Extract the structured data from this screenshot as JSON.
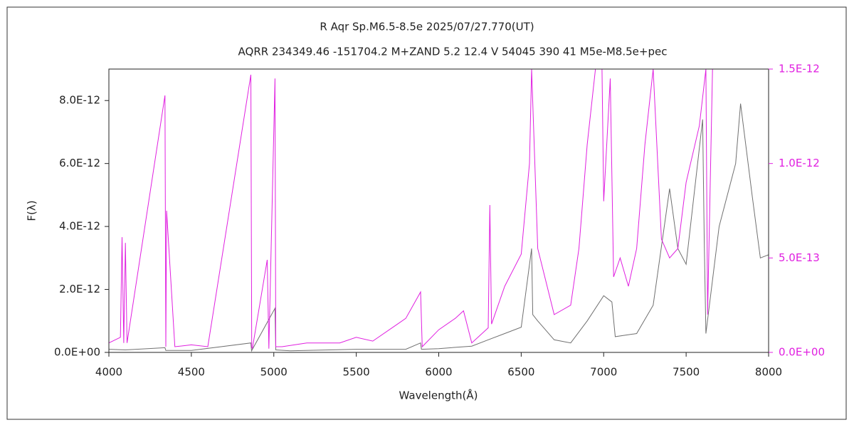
{
  "chart_data": {
    "type": "line",
    "title": "R Aqr    Sp.M6.5-8.5e    2025/07/27.770(UT)",
    "subtitle": "AQRR 234349.46 -151704.2 M+ZAND 5.2 12.4 V 54045 390 41 M5e-M8.5e+pec",
    "x_label": "Wavelength(Å)",
    "y_label": "F(λ)",
    "xlim": [
      4000,
      8000
    ],
    "xticks": [
      4000,
      4500,
      5000,
      5500,
      6000,
      6500,
      7000,
      7500,
      8000
    ],
    "ylim": [
      0,
      9e-12
    ],
    "yticks": [
      {
        "value": 0,
        "label": "0.0E+00"
      },
      {
        "value": 2e-12,
        "label": "2.0E-12"
      },
      {
        "value": 4e-12,
        "label": "4.0E-12"
      },
      {
        "value": 6e-12,
        "label": "6.0E-12"
      },
      {
        "value": 8e-12,
        "label": "8.0E-12"
      }
    ],
    "y2lim": [
      0,
      1.5e-12
    ],
    "y2ticks": [
      {
        "value": 0,
        "label": "0.0E+00"
      },
      {
        "value": 5e-13,
        "label": "5.0E-13"
      },
      {
        "value": 1e-12,
        "label": "1.0E-12"
      },
      {
        "value": 1.5e-12,
        "label": "1.5E-12"
      }
    ],
    "series": [
      {
        "color": "#707070",
        "x": [
          4000,
          4100,
          4340,
          4345,
          4500,
          4861,
          4865,
          5007,
          5012,
          5100,
          5500,
          5800,
          5890,
          5895,
          6000,
          6200,
          6300,
          6400,
          6500,
          6563,
          6570,
          6600,
          6700,
          6800,
          6900,
          7000,
          7050,
          7070,
          7200,
          7300,
          7400,
          7450,
          7500,
          7600,
          7610,
          7620,
          7700,
          7800,
          7830,
          7900,
          7950,
          8000
        ],
        "values": [
          1e-13,
          8e-14,
          1.5e-13,
          6e-14,
          6e-14,
          3e-13,
          5e-14,
          1.4e-12,
          8e-14,
          5e-14,
          1e-13,
          1e-13,
          3e-13,
          1e-13,
          1.2e-13,
          2e-13,
          4e-13,
          6e-13,
          8e-13,
          3.3e-12,
          1.2e-12,
          1e-12,
          4e-13,
          3e-13,
          1e-12,
          1.8e-12,
          1.6e-12,
          5e-13,
          6e-13,
          1.5e-12,
          5.2e-12,
          3.3e-12,
          2.8e-12,
          7.4e-12,
          3.5e-12,
          6e-13,
          4e-12,
          6e-12,
          7.9e-12,
          5e-12,
          3e-12,
          3.1e-12
        ]
      },
      {
        "color": "#e020e0",
        "axis": "y2",
        "x": [
          4000,
          4070,
          4080,
          4090,
          4100,
          4110,
          4340,
          4345,
          4350,
          4400,
          4500,
          4600,
          4861,
          4866,
          4870,
          4960,
          4970,
          5007,
          5012,
          5050,
          5200,
          5400,
          5500,
          5600,
          5750,
          5800,
          5890,
          5900,
          6000,
          6100,
          6150,
          6200,
          6300,
          6310,
          6320,
          6400,
          6500,
          6550,
          6563,
          6600,
          6700,
          6800,
          6850,
          6900,
          6950,
          6990,
          7000,
          7040,
          7060,
          7100,
          7150,
          7200,
          7250,
          7300,
          7350,
          7400,
          7450,
          7500,
          7580,
          7620,
          7630,
          7660
        ],
        "values": [
          5e-14,
          8e-14,
          6.1e-13,
          5e-14,
          5.8e-13,
          5e-14,
          1.36e-12,
          3e-14,
          7.5e-13,
          3e-14,
          4e-14,
          3e-14,
          1.47e-12,
          3e-14,
          2e-14,
          4.9e-13,
          2e-14,
          1.45e-12,
          3e-14,
          3e-14,
          5e-14,
          5e-14,
          8e-14,
          6e-14,
          1.5e-13,
          1.8e-13,
          3.2e-13,
          3e-14,
          1.2e-13,
          1.8e-13,
          2.2e-13,
          5e-14,
          1.3e-13,
          7.8e-13,
          1.5e-13,
          3.5e-13,
          5.2e-13,
          1e-12,
          1.5e-12,
          5.5e-13,
          2e-13,
          2.5e-13,
          5.5e-13,
          1.1e-12,
          1.5e-12,
          1.5e-12,
          8e-13,
          1.45e-12,
          4e-13,
          5e-13,
          3.5e-13,
          5.5e-13,
          1.1e-12,
          1.5e-12,
          6e-13,
          5e-13,
          5.5e-13,
          9e-13,
          1.2e-12,
          1.5e-12,
          2e-13,
          1.5e-12
        ]
      }
    ]
  }
}
